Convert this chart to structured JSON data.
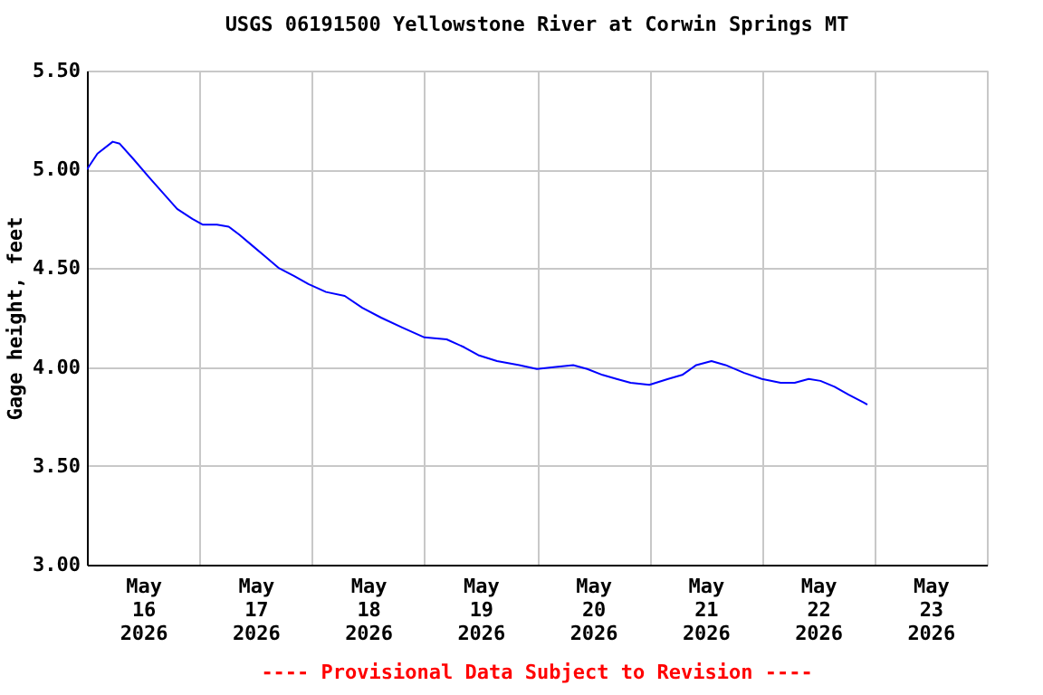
{
  "chart_data": {
    "type": "line",
    "title": "USGS 06191500 Yellowstone River at Corwin Springs MT",
    "ylabel": "Gage height, feet",
    "annotations": [
      "---- Provisional Data Subject to Revision ----"
    ],
    "x": [
      "2026-05-16T00:00",
      "2026-05-16T02:15",
      "2026-05-16T05:30",
      "2026-05-16T07:00",
      "2026-05-16T10:00",
      "2026-05-16T13:15",
      "2026-05-16T16:15",
      "2026-05-16T19:15",
      "2026-05-16T22:30",
      "2026-05-17T00:45",
      "2026-05-17T03:45",
      "2026-05-17T06:15",
      "2026-05-17T08:30",
      "2026-05-17T11:30",
      "2026-05-17T14:00",
      "2026-05-17T17:00",
      "2026-05-17T20:15",
      "2026-05-17T23:15",
      "2026-05-18T03:00",
      "2026-05-18T07:00",
      "2026-05-18T10:45",
      "2026-05-18T14:45",
      "2026-05-18T19:15",
      "2026-05-19T00:00",
      "2026-05-19T04:45",
      "2026-05-19T08:30",
      "2026-05-19T11:30",
      "2026-05-19T15:30",
      "2026-05-19T20:15",
      "2026-05-20T00:00",
      "2026-05-20T04:00",
      "2026-05-20T07:45",
      "2026-05-20T10:45",
      "2026-05-20T14:00",
      "2026-05-20T17:00",
      "2026-05-20T20:00",
      "2026-05-21T00:00",
      "2026-05-21T04:00",
      "2026-05-21T07:00",
      "2026-05-21T10:00",
      "2026-05-21T13:15",
      "2026-05-21T16:15",
      "2026-05-21T20:15",
      "2026-05-22T00:00",
      "2026-05-22T04:00",
      "2026-05-22T07:00",
      "2026-05-22T10:00",
      "2026-05-22T12:30",
      "2026-05-22T15:30",
      "2026-05-22T18:30",
      "2026-05-22T21:45",
      "2026-05-22T22:30"
    ],
    "series": [
      {
        "color": "#0000ff",
        "values": [
          5.0,
          5.08,
          5.14,
          5.13,
          5.05,
          4.96,
          4.88,
          4.8,
          4.75,
          4.72,
          4.72,
          4.71,
          4.67,
          4.61,
          4.56,
          4.5,
          4.46,
          4.42,
          4.38,
          4.36,
          4.3,
          4.25,
          4.2,
          4.15,
          4.14,
          4.1,
          4.06,
          4.03,
          4.01,
          3.99,
          4.0,
          4.01,
          3.99,
          3.96,
          3.94,
          3.92,
          3.91,
          3.94,
          3.96,
          4.01,
          4.03,
          4.01,
          3.97,
          3.94,
          3.92,
          3.92,
          3.94,
          3.93,
          3.9,
          3.86,
          3.82,
          3.81
        ]
      }
    ],
    "xlim": [
      "2026-05-16T00:00",
      "2026-05-24T00:00"
    ],
    "xticks": [
      {
        "value": "2026-05-16T00:00",
        "label": null
      },
      {
        "value": "2026-05-16T12:00",
        "label": "May 16 2026"
      },
      {
        "value": "2026-05-17T00:00",
        "label": null
      },
      {
        "value": "2026-05-17T12:00",
        "label": "May 17 2026"
      },
      {
        "value": "2026-05-18T00:00",
        "label": null
      },
      {
        "value": "2026-05-18T12:00",
        "label": "May 18 2026"
      },
      {
        "value": "2026-05-19T00:00",
        "label": null
      },
      {
        "value": "2026-05-19T12:00",
        "label": "May 19 2026"
      },
      {
        "value": "2026-05-20T00:00",
        "label": null
      },
      {
        "value": "2026-05-20T12:00",
        "label": "May 20 2026"
      },
      {
        "value": "2026-05-21T00:00",
        "label": null
      },
      {
        "value": "2026-05-21T12:00",
        "label": "May 21 2026"
      },
      {
        "value": "2026-05-22T00:00",
        "label": null
      },
      {
        "value": "2026-05-22T12:00",
        "label": "May 22 2026"
      },
      {
        "value": "2026-05-23T00:00",
        "label": null
      },
      {
        "value": "2026-05-23T12:00",
        "label": "May 23 2026"
      },
      {
        "value": "2026-05-24T00:00",
        "label": null
      }
    ],
    "ylim": [
      3.0,
      5.5
    ],
    "yticks": [
      {
        "value": 3.0,
        "label": "3.00"
      },
      {
        "value": 3.5,
        "label": "3.50"
      },
      {
        "value": 4.0,
        "label": "4.00"
      },
      {
        "value": 4.5,
        "label": "4.50"
      },
      {
        "value": 5.0,
        "label": "5.00"
      },
      {
        "value": 5.5,
        "label": "5.50"
      }
    ],
    "grid": true,
    "line_style": "solid",
    "marker": "none"
  }
}
